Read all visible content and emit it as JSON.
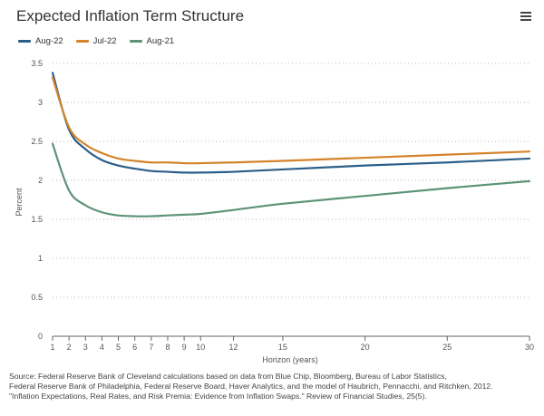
{
  "chart_data": {
    "type": "line",
    "title": "Expected Inflation Term Structure",
    "xlabel": "Horizon (years)",
    "ylabel": "Percent",
    "xlim": [
      1,
      30
    ],
    "ylim": [
      0,
      3.5
    ],
    "xticks": [
      1,
      2,
      3,
      4,
      5,
      6,
      7,
      8,
      9,
      10,
      12,
      15,
      20,
      25,
      30
    ],
    "yticks": [
      0,
      0.5,
      1,
      1.5,
      2,
      2.5,
      3,
      3.5
    ],
    "grid": "horizontal-dotted",
    "legend": "top-left",
    "x": [
      1,
      2,
      3,
      4,
      5,
      6,
      7,
      8,
      9,
      10,
      12,
      15,
      20,
      25,
      30
    ],
    "series": [
      {
        "name": "Aug-22",
        "color": "#2b5f8a",
        "values": [
          3.38,
          2.65,
          2.4,
          2.26,
          2.19,
          2.15,
          2.12,
          2.11,
          2.1,
          2.1,
          2.11,
          2.14,
          2.19,
          2.23,
          2.28
        ]
      },
      {
        "name": "Jul-22",
        "color": "#d4832a",
        "values": [
          3.32,
          2.68,
          2.46,
          2.35,
          2.28,
          2.25,
          2.23,
          2.23,
          2.22,
          2.22,
          2.23,
          2.25,
          2.29,
          2.33,
          2.37
        ]
      },
      {
        "name": "Aug-21",
        "color": "#5e9377",
        "values": [
          2.47,
          1.87,
          1.68,
          1.59,
          1.55,
          1.54,
          1.54,
          1.55,
          1.56,
          1.57,
          1.62,
          1.7,
          1.8,
          1.9,
          1.99
        ]
      }
    ]
  },
  "footnote": [
    "Source: Federal Reserve Bank of Cleveland calculations based on data from Blue Chip, Bloomberg, Bureau of Labor Statistics,",
    "Federal Reserve Bank of Philadelphia, Federal Reserve Board, Haver Analytics, and the model of Haubrich, Pennacchi, and Ritchken, 2012.",
    "\"Inflation Expectations, Real Rates, and Risk Premia: Evidence from Inflation Swaps.\" Review of Financial Studies, 25(5)."
  ],
  "icons": {
    "menu": "hamburger-menu-icon"
  }
}
